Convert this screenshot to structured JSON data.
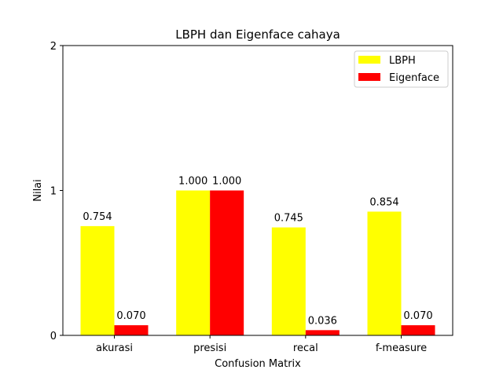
{
  "chart_data": {
    "type": "bar",
    "title": "LBPH dan Eigenface cahaya",
    "xlabel": "Confusion Matrix",
    "ylabel": "Nilai",
    "categories": [
      "akurasi",
      "presisi",
      "recal",
      "f-measure"
    ],
    "series": [
      {
        "name": "LBPH",
        "color": "#ffff00",
        "values": [
          0.754,
          1.0,
          0.745,
          0.854
        ],
        "labels": [
          "0.754",
          "1.000",
          "0.745",
          "0.854"
        ]
      },
      {
        "name": "Eigenface",
        "color": "#ff0000",
        "values": [
          0.07,
          1.0,
          0.036,
          0.07
        ],
        "labels": [
          "0.070",
          "1.000",
          "0.036",
          "0.070"
        ]
      }
    ],
    "ylim": [
      0,
      2
    ],
    "yticks": [
      0,
      1,
      2
    ],
    "yticklabels": [
      "0",
      "1",
      "2"
    ],
    "grid": false,
    "legend_position": "top-right"
  }
}
